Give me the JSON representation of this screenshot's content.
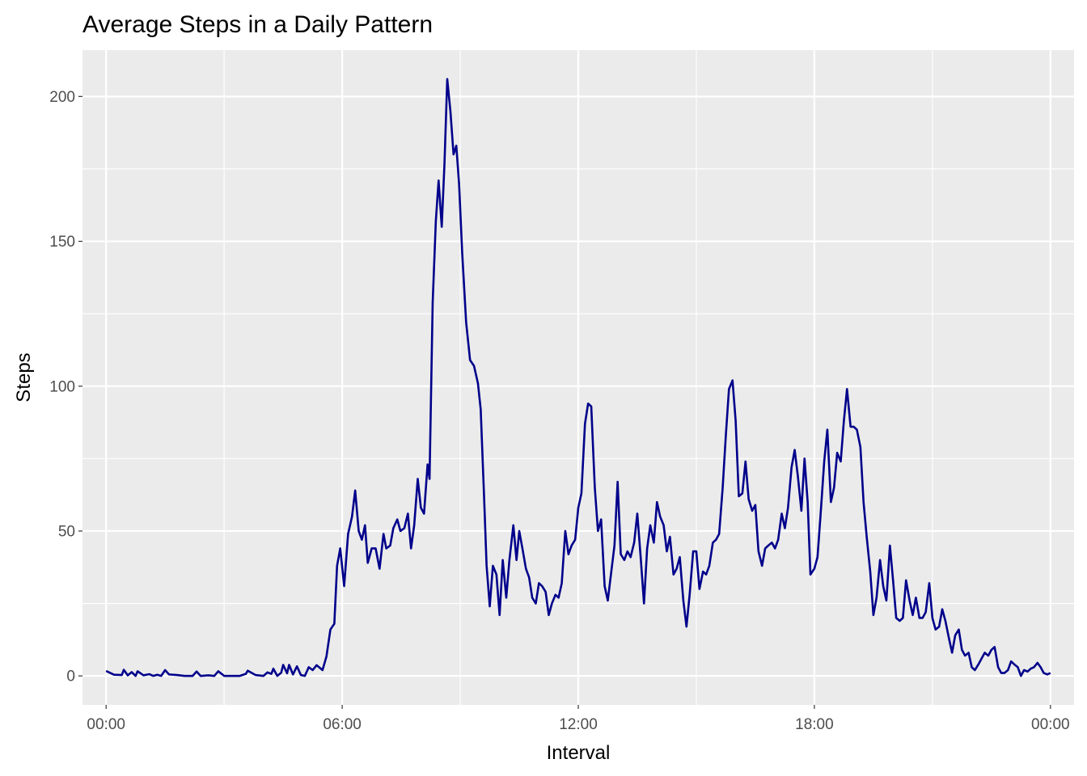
{
  "chart_data": {
    "type": "line",
    "title": "Average Steps in a Daily Pattern",
    "xlabel": "Interval",
    "ylabel": "Steps",
    "xlim_hours": [
      -0.6,
      24.6
    ],
    "ylim": [
      -10,
      216
    ],
    "x_ticks": [
      {
        "hour": 0,
        "label": "00:00"
      },
      {
        "hour": 6,
        "label": "06:00"
      },
      {
        "hour": 12,
        "label": "12:00"
      },
      {
        "hour": 18,
        "label": "18:00"
      },
      {
        "hour": 24,
        "label": "00:00"
      }
    ],
    "y_ticks": [
      0,
      50,
      100,
      150,
      200
    ],
    "grid": true,
    "line_color": "#00008b",
    "panel_color": "#ebebeb",
    "series": [
      {
        "name": "Steps",
        "points": [
          [
            0.0,
            1.7
          ],
          [
            0.2,
            0.4
          ],
          [
            0.4,
            0.3
          ],
          [
            0.45,
            2.1
          ],
          [
            0.55,
            0.2
          ],
          [
            0.65,
            1.3
          ],
          [
            0.75,
            0.0
          ],
          [
            0.8,
            1.6
          ],
          [
            0.95,
            0.2
          ],
          [
            1.1,
            0.6
          ],
          [
            1.2,
            0.0
          ],
          [
            1.3,
            0.4
          ],
          [
            1.4,
            0.0
          ],
          [
            1.5,
            2.0
          ],
          [
            1.6,
            0.5
          ],
          [
            1.8,
            0.3
          ],
          [
            2.0,
            0.0
          ],
          [
            2.2,
            0.0
          ],
          [
            2.3,
            1.5
          ],
          [
            2.4,
            0.0
          ],
          [
            2.6,
            0.2
          ],
          [
            2.75,
            0.0
          ],
          [
            2.85,
            1.6
          ],
          [
            3.0,
            0.0
          ],
          [
            3.4,
            0.0
          ],
          [
            3.55,
            0.7
          ],
          [
            3.6,
            1.8
          ],
          [
            3.8,
            0.3
          ],
          [
            4.0,
            0.0
          ],
          [
            4.1,
            1.2
          ],
          [
            4.2,
            0.7
          ],
          [
            4.25,
            2.5
          ],
          [
            4.35,
            0.0
          ],
          [
            4.45,
            1.1
          ],
          [
            4.5,
            3.8
          ],
          [
            4.6,
            0.9
          ],
          [
            4.65,
            3.8
          ],
          [
            4.75,
            0.5
          ],
          [
            4.85,
            3.3
          ],
          [
            4.95,
            0.3
          ],
          [
            5.05,
            0.0
          ],
          [
            5.15,
            3.0
          ],
          [
            5.25,
            2.0
          ],
          [
            5.35,
            3.7
          ],
          [
            5.5,
            2.0
          ],
          [
            5.6,
            6.7
          ],
          [
            5.7,
            16.0
          ],
          [
            5.8,
            18.0
          ],
          [
            5.87,
            38.0
          ],
          [
            5.95,
            44.0
          ],
          [
            6.05,
            31.0
          ],
          [
            6.15,
            49.0
          ],
          [
            6.25,
            55.0
          ],
          [
            6.33,
            64.0
          ],
          [
            6.42,
            50.0
          ],
          [
            6.5,
            47.0
          ],
          [
            6.58,
            52.0
          ],
          [
            6.65,
            39.0
          ],
          [
            6.75,
            44.0
          ],
          [
            6.85,
            44.0
          ],
          [
            6.95,
            37.0
          ],
          [
            7.05,
            49.0
          ],
          [
            7.12,
            44.0
          ],
          [
            7.22,
            45.0
          ],
          [
            7.3,
            51.0
          ],
          [
            7.4,
            54.0
          ],
          [
            7.48,
            50.0
          ],
          [
            7.58,
            51.0
          ],
          [
            7.67,
            56.0
          ],
          [
            7.75,
            44.0
          ],
          [
            7.83,
            52.0
          ],
          [
            7.92,
            68.0
          ],
          [
            8.0,
            58.0
          ],
          [
            8.08,
            56.0
          ],
          [
            8.17,
            73.0
          ],
          [
            8.22,
            68.0
          ],
          [
            8.3,
            129.0
          ],
          [
            8.38,
            157.0
          ],
          [
            8.45,
            171.0
          ],
          [
            8.53,
            155.0
          ],
          [
            8.6,
            177.0
          ],
          [
            8.67,
            206.0
          ],
          [
            8.75,
            195.0
          ],
          [
            8.83,
            180.0
          ],
          [
            8.9,
            183.0
          ],
          [
            8.97,
            170.0
          ],
          [
            9.05,
            146.0
          ],
          [
            9.15,
            122.0
          ],
          [
            9.25,
            109.0
          ],
          [
            9.35,
            107.0
          ],
          [
            9.45,
            101.0
          ],
          [
            9.52,
            92.0
          ],
          [
            9.6,
            64.0
          ],
          [
            9.67,
            38.0
          ],
          [
            9.75,
            24.0
          ],
          [
            9.83,
            38.0
          ],
          [
            9.92,
            35.0
          ],
          [
            10.0,
            21.0
          ],
          [
            10.08,
            40.0
          ],
          [
            10.17,
            27.0
          ],
          [
            10.25,
            40.0
          ],
          [
            10.35,
            52.0
          ],
          [
            10.43,
            40.0
          ],
          [
            10.5,
            50.0
          ],
          [
            10.58,
            44.0
          ],
          [
            10.67,
            37.0
          ],
          [
            10.75,
            34.0
          ],
          [
            10.83,
            27.0
          ],
          [
            10.92,
            25.0
          ],
          [
            11.0,
            32.0
          ],
          [
            11.08,
            31.0
          ],
          [
            11.17,
            29.0
          ],
          [
            11.25,
            21.0
          ],
          [
            11.33,
            25.0
          ],
          [
            11.42,
            28.0
          ],
          [
            11.5,
            27.0
          ],
          [
            11.58,
            32.0
          ],
          [
            11.67,
            50.0
          ],
          [
            11.75,
            42.0
          ],
          [
            11.83,
            45.0
          ],
          [
            11.92,
            47.0
          ],
          [
            12.0,
            58.0
          ],
          [
            12.08,
            63.0
          ],
          [
            12.17,
            87.0
          ],
          [
            12.25,
            94.0
          ],
          [
            12.33,
            93.0
          ],
          [
            12.42,
            65.0
          ],
          [
            12.5,
            50.0
          ],
          [
            12.58,
            54.0
          ],
          [
            12.67,
            31.0
          ],
          [
            12.75,
            26.0
          ],
          [
            12.83,
            35.0
          ],
          [
            12.92,
            45.0
          ],
          [
            13.0,
            67.0
          ],
          [
            13.08,
            42.0
          ],
          [
            13.17,
            40.0
          ],
          [
            13.25,
            43.0
          ],
          [
            13.33,
            41.0
          ],
          [
            13.42,
            46.0
          ],
          [
            13.5,
            56.0
          ],
          [
            13.58,
            42.0
          ],
          [
            13.67,
            25.0
          ],
          [
            13.75,
            44.0
          ],
          [
            13.83,
            52.0
          ],
          [
            13.92,
            46.0
          ],
          [
            14.0,
            60.0
          ],
          [
            14.08,
            55.0
          ],
          [
            14.17,
            52.0
          ],
          [
            14.25,
            43.0
          ],
          [
            14.33,
            48.0
          ],
          [
            14.42,
            35.0
          ],
          [
            14.5,
            37.0
          ],
          [
            14.58,
            41.0
          ],
          [
            14.67,
            26.0
          ],
          [
            14.75,
            17.0
          ],
          [
            14.83,
            28.0
          ],
          [
            14.92,
            43.0
          ],
          [
            15.0,
            43.0
          ],
          [
            15.08,
            30.0
          ],
          [
            15.17,
            36.0
          ],
          [
            15.25,
            35.0
          ],
          [
            15.33,
            38.0
          ],
          [
            15.42,
            46.0
          ],
          [
            15.5,
            47.0
          ],
          [
            15.58,
            49.0
          ],
          [
            15.67,
            65.0
          ],
          [
            15.75,
            83.0
          ],
          [
            15.83,
            99.0
          ],
          [
            15.92,
            102.0
          ],
          [
            16.0,
            88.0
          ],
          [
            16.08,
            62.0
          ],
          [
            16.17,
            63.0
          ],
          [
            16.25,
            74.0
          ],
          [
            16.33,
            61.0
          ],
          [
            16.42,
            57.0
          ],
          [
            16.5,
            59.0
          ],
          [
            16.58,
            43.0
          ],
          [
            16.67,
            38.0
          ],
          [
            16.75,
            44.0
          ],
          [
            16.83,
            45.0
          ],
          [
            16.92,
            46.0
          ],
          [
            17.0,
            44.0
          ],
          [
            17.08,
            47.0
          ],
          [
            17.17,
            56.0
          ],
          [
            17.25,
            51.0
          ],
          [
            17.33,
            58.0
          ],
          [
            17.42,
            72.0
          ],
          [
            17.5,
            78.0
          ],
          [
            17.58,
            69.0
          ],
          [
            17.67,
            57.0
          ],
          [
            17.75,
            75.0
          ],
          [
            17.83,
            60.0
          ],
          [
            17.9,
            35.0
          ],
          [
            18.0,
            37.0
          ],
          [
            18.08,
            41.0
          ],
          [
            18.17,
            58.0
          ],
          [
            18.25,
            74.0
          ],
          [
            18.33,
            85.0
          ],
          [
            18.42,
            60.0
          ],
          [
            18.5,
            65.0
          ],
          [
            18.58,
            77.0
          ],
          [
            18.67,
            74.0
          ],
          [
            18.75,
            88.0
          ],
          [
            18.83,
            99.0
          ],
          [
            18.92,
            86.0
          ],
          [
            19.0,
            86.0
          ],
          [
            19.08,
            85.0
          ],
          [
            19.17,
            79.0
          ],
          [
            19.25,
            60.0
          ],
          [
            19.33,
            48.0
          ],
          [
            19.42,
            36.0
          ],
          [
            19.5,
            21.0
          ],
          [
            19.58,
            27.0
          ],
          [
            19.67,
            40.0
          ],
          [
            19.75,
            31.0
          ],
          [
            19.83,
            26.0
          ],
          [
            19.92,
            45.0
          ],
          [
            20.0,
            33.0
          ],
          [
            20.08,
            20.0
          ],
          [
            20.17,
            19.0
          ],
          [
            20.25,
            20.0
          ],
          [
            20.33,
            33.0
          ],
          [
            20.42,
            26.0
          ],
          [
            20.5,
            21.0
          ],
          [
            20.58,
            27.0
          ],
          [
            20.67,
            20.0
          ],
          [
            20.75,
            20.0
          ],
          [
            20.83,
            22.0
          ],
          [
            20.92,
            32.0
          ],
          [
            21.0,
            20.0
          ],
          [
            21.08,
            16.0
          ],
          [
            21.17,
            17.0
          ],
          [
            21.25,
            23.0
          ],
          [
            21.33,
            19.0
          ],
          [
            21.42,
            13.0
          ],
          [
            21.5,
            8.0
          ],
          [
            21.58,
            14.0
          ],
          [
            21.67,
            16.0
          ],
          [
            21.75,
            9.0
          ],
          [
            21.83,
            7.0
          ],
          [
            21.92,
            8.0
          ],
          [
            22.0,
            3.0
          ],
          [
            22.08,
            2.0
          ],
          [
            22.17,
            4.0
          ],
          [
            22.25,
            6.0
          ],
          [
            22.33,
            8.0
          ],
          [
            22.42,
            7.0
          ],
          [
            22.5,
            9.0
          ],
          [
            22.58,
            10.0
          ],
          [
            22.67,
            3.0
          ],
          [
            22.75,
            1.0
          ],
          [
            22.83,
            1.0
          ],
          [
            22.92,
            2.0
          ],
          [
            23.0,
            5.0
          ],
          [
            23.08,
            4.0
          ],
          [
            23.17,
            3.0
          ],
          [
            23.25,
            0.0
          ],
          [
            23.33,
            2.0
          ],
          [
            23.42,
            1.5
          ],
          [
            23.5,
            2.5
          ],
          [
            23.58,
            3.0
          ],
          [
            23.67,
            4.5
          ],
          [
            23.75,
            3.0
          ],
          [
            23.83,
            1.0
          ],
          [
            23.92,
            0.5
          ],
          [
            24.0,
            1.0
          ]
        ]
      }
    ]
  }
}
